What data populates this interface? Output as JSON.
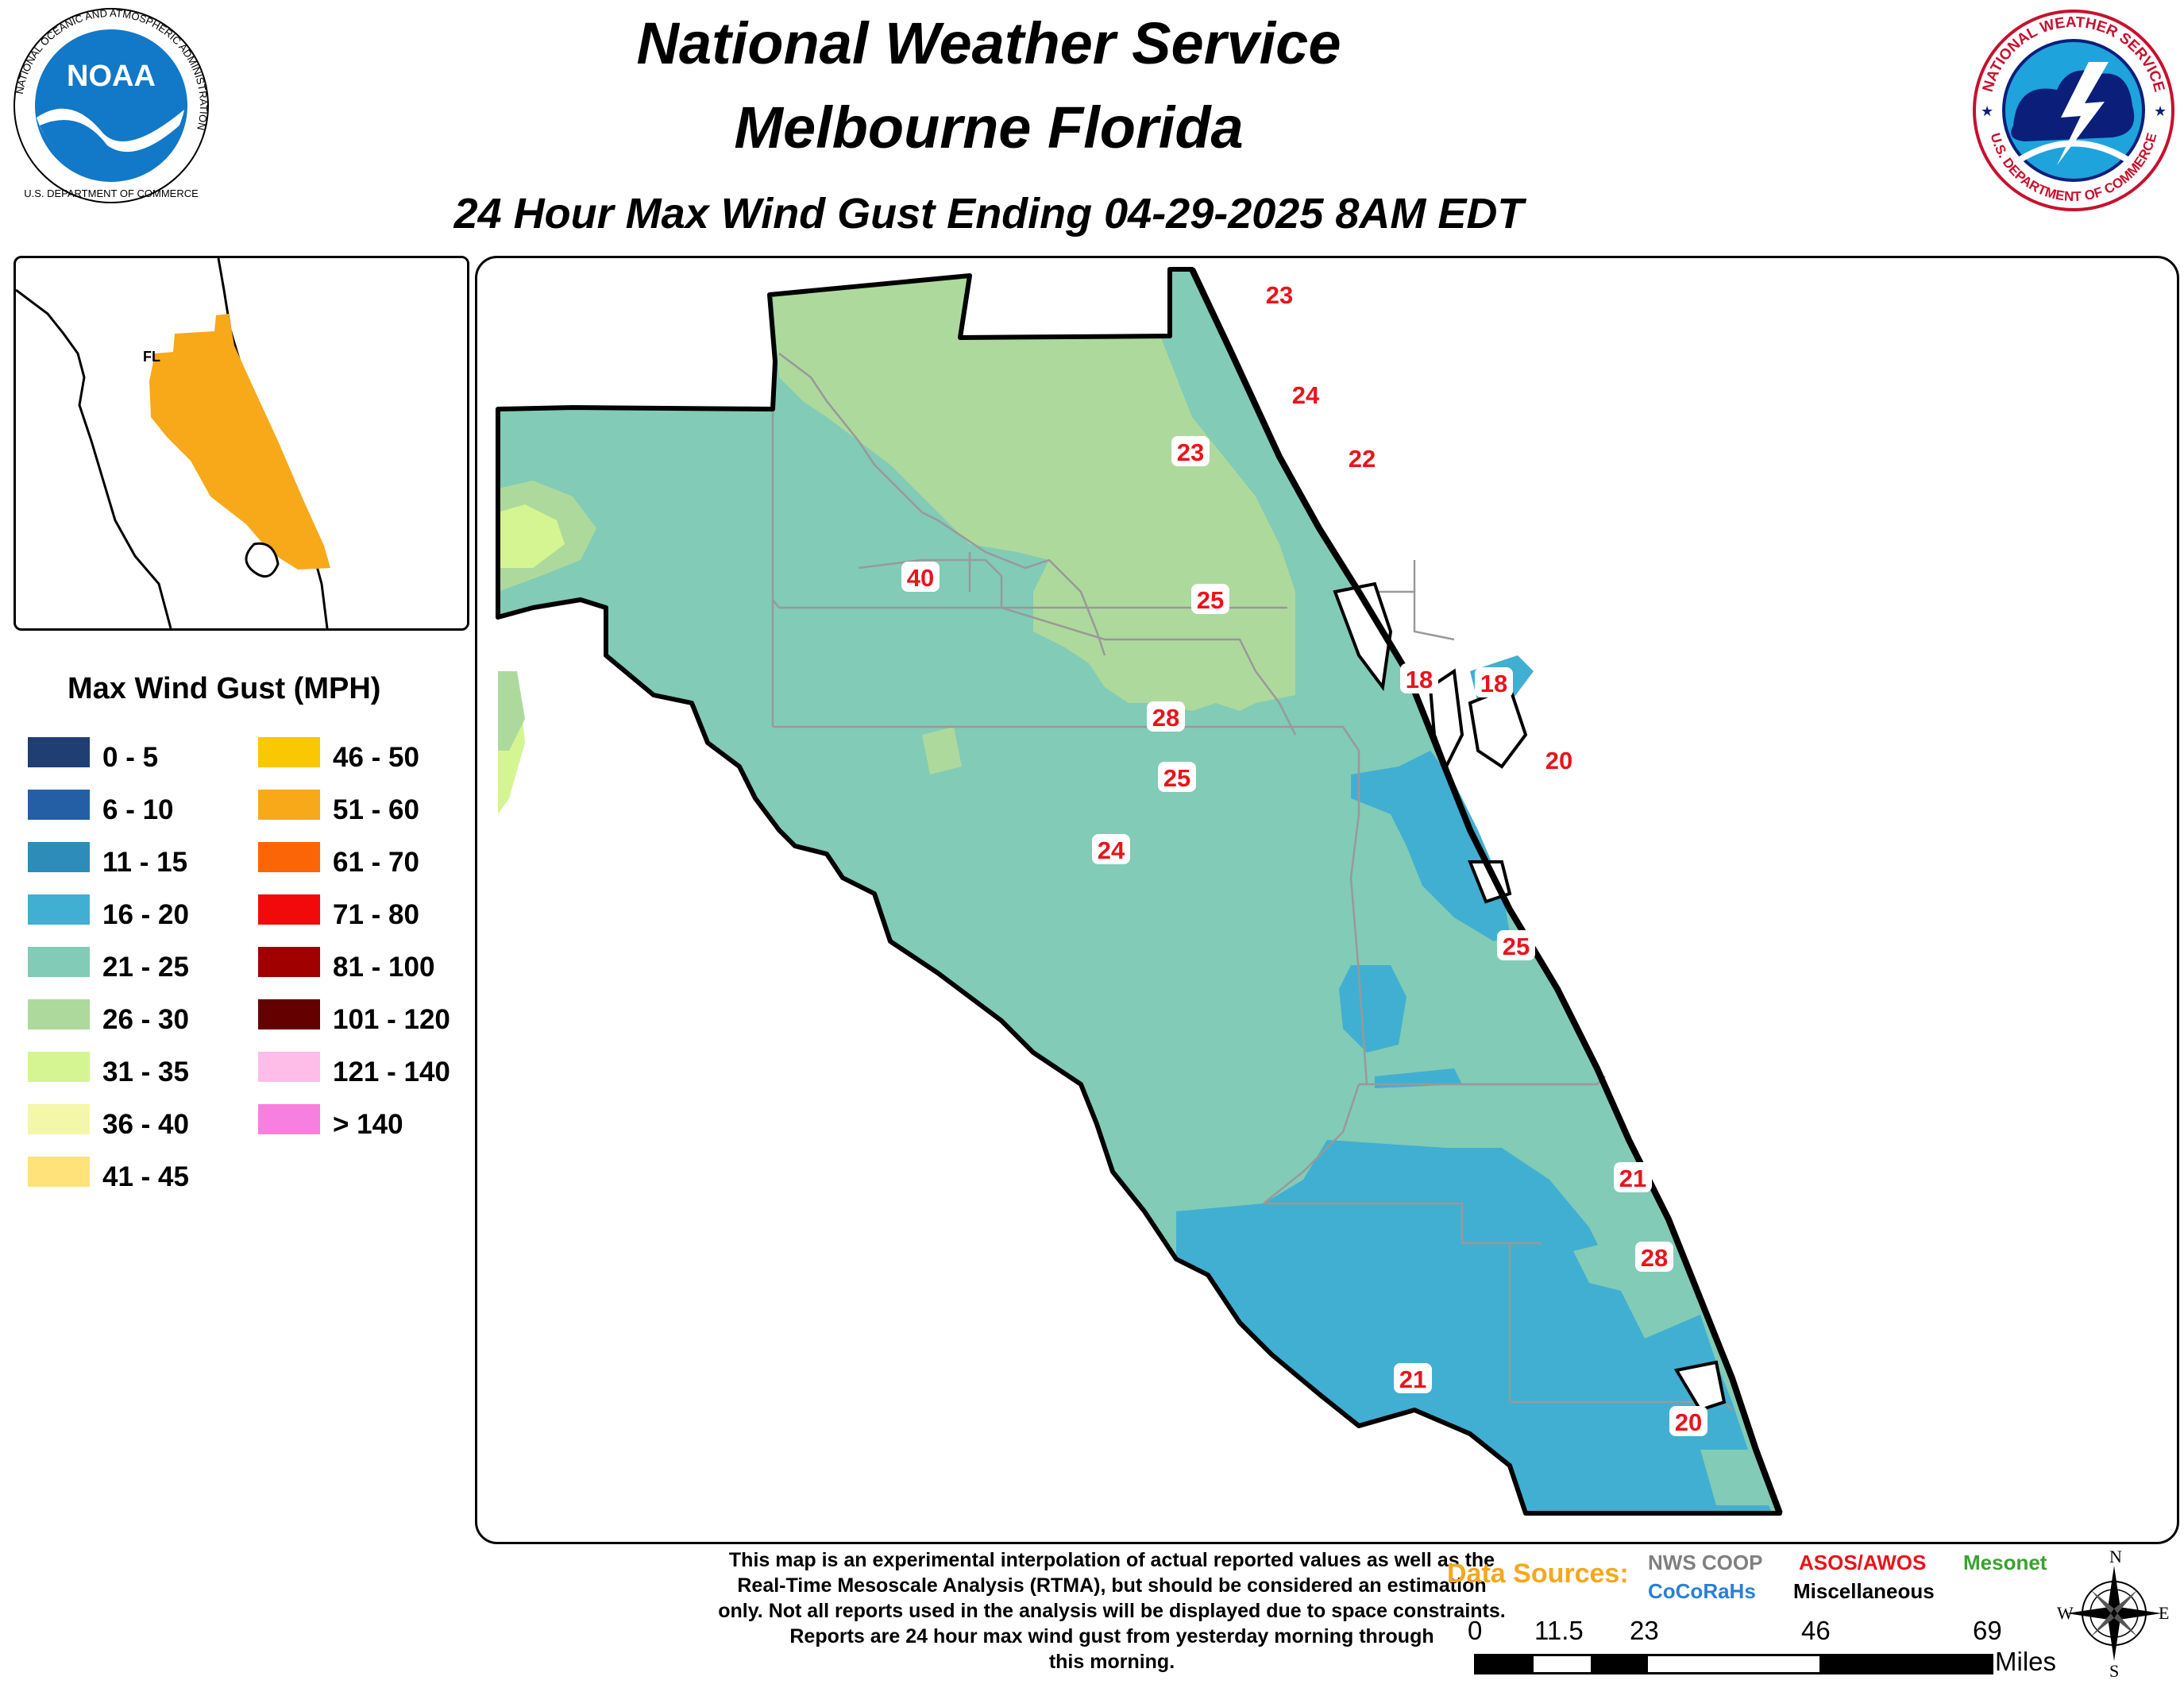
{
  "header": {
    "line1": "National Weather Service",
    "line2": "Melbourne Florida",
    "subtitle": "24 Hour Max Wind Gust Ending 04-29-2025 8AM EDT"
  },
  "logos": {
    "noaa": {
      "center_text": "NOAA",
      "ring_text": "NATIONAL OCEANIC AND ATMOSPHERIC ADMINISTRATION",
      "bottom_text": "U.S. DEPARTMENT OF COMMERCE"
    },
    "nws": {
      "ring_text_top": "NATIONAL WEATHER SERVICE",
      "ring_text_bottom": "U.S. DEPARTMENT OF COMMERCE"
    }
  },
  "inset": {
    "state_label": "FL"
  },
  "legend": {
    "title": "Max Wind Gust (MPH)",
    "items": [
      {
        "label": "0 - 5",
        "color": "#1f3f73"
      },
      {
        "label": "6 - 10",
        "color": "#245fa5"
      },
      {
        "label": "11 - 15",
        "color": "#2e8cb8"
      },
      {
        "label": "16 - 20",
        "color": "#41afd2"
      },
      {
        "label": "21 - 25",
        "color": "#82cbb6"
      },
      {
        "label": "26 - 30",
        "color": "#aed99d"
      },
      {
        "label": "31 - 35",
        "color": "#d4f592"
      },
      {
        "label": "36 - 40",
        "color": "#f4f6a8"
      },
      {
        "label": "41 - 45",
        "color": "#ffe37a"
      },
      {
        "label": "46 - 50",
        "color": "#f9c800"
      },
      {
        "label": "51 - 60",
        "color": "#f7a91a"
      },
      {
        "label": "61 - 70",
        "color": "#fc6408"
      },
      {
        "label": "71 - 80",
        "color": "#f20a0a"
      },
      {
        "label": "81 - 100",
        "color": "#a00000"
      },
      {
        "label": "101 - 120",
        "color": "#640000"
      },
      {
        "label": "121 - 140",
        "color": "#fdbde8"
      },
      {
        "label": "> 140",
        "color": "#f77fe0"
      }
    ]
  },
  "stations": [
    {
      "value": "23"
    },
    {
      "value": "24"
    },
    {
      "value": "23"
    },
    {
      "value": "22"
    },
    {
      "value": "40"
    },
    {
      "value": "25"
    },
    {
      "value": "18"
    },
    {
      "value": "18"
    },
    {
      "value": "28"
    },
    {
      "value": "20"
    },
    {
      "value": "25"
    },
    {
      "value": "24"
    },
    {
      "value": "25"
    },
    {
      "value": "21"
    },
    {
      "value": "28"
    },
    {
      "value": "21"
    },
    {
      "value": "20"
    }
  ],
  "disclaimer": {
    "lines": [
      "This map is an experimental interpolation of actual reported values as well as the",
      "Real-Time Mesoscale Analysis (RTMA), but should be considered an estimation",
      "only. Not all reports used in the analysis will be displayed due to space constraints.",
      "Reports are 24 hour max wind gust from yesterday morning through",
      "this morning."
    ]
  },
  "data_sources": {
    "title": "Data Sources:",
    "items": [
      {
        "label": "NWS COOP",
        "color": "#808080"
      },
      {
        "label": "ASOS/AWOS",
        "color": "#e8141c"
      },
      {
        "label": "Mesonet",
        "color": "#3aa12f"
      },
      {
        "label": "CoCoRaHs",
        "color": "#2a7fd6"
      },
      {
        "label": "Miscellaneous",
        "color": "#000000"
      }
    ]
  },
  "scale_bar": {
    "ticks": [
      "0",
      "11.5",
      "23",
      "46",
      "69"
    ],
    "unit": "Miles"
  },
  "compass": {
    "n": "N",
    "s": "S",
    "e": "E",
    "w": "W"
  }
}
